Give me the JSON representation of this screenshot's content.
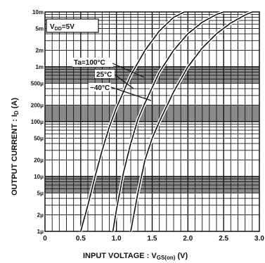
{
  "chart_data": {
    "type": "line",
    "title": "",
    "xlabel": "INPUT VOLTAGE : V",
    "xlabel_sub": "GS(on)",
    "xlabel_unit": "(V)",
    "ylabel": "OUTPUT CURRENT : I",
    "ylabel_sub": "D",
    "ylabel_unit": "(A)",
    "xlim": [
      0,
      3.0
    ],
    "ylim": [
      0.001,
      10
    ],
    "yscale": "log",
    "x_ticks": [
      0,
      0.5,
      1.0,
      1.5,
      2.0,
      2.5,
      3.0
    ],
    "x_tick_labels": [
      "0",
      "0.5",
      "1.0",
      "1.5",
      "2.0",
      "2.5",
      "3.0"
    ],
    "y_tick_labels": [
      {
        "value": 10,
        "label": "10m"
      },
      {
        "value": 5,
        "label": "5m"
      },
      {
        "value": 2,
        "label": "2m"
      },
      {
        "value": 1,
        "label": "1m"
      },
      {
        "value": 0.5,
        "label": "500μ"
      },
      {
        "value": 0.2,
        "label": "200μ"
      },
      {
        "value": 0.1,
        "label": "100μ"
      },
      {
        "value": 0.05,
        "label": "50μ"
      },
      {
        "value": 0.02,
        "label": "20μ"
      },
      {
        "value": 0.01,
        "label": "10μ"
      },
      {
        "value": 0.005,
        "label": "5μ"
      },
      {
        "value": 0.002,
        "label": "2μ"
      },
      {
        "value": 0.001,
        "label": "1μ"
      }
    ],
    "grid": true,
    "shaded_bands": [
      {
        "from": 0.5,
        "to": 1
      },
      {
        "from": 0.1,
        "to": 0.2
      },
      {
        "from": 0.005,
        "to": 0.01
      }
    ],
    "annotations": {
      "condition": "VDD=5V",
      "condition_sub_prefix": "V",
      "condition_sub": "DD",
      "condition_rest": "=5V",
      "series_header": "Ta=100°C"
    },
    "series": [
      {
        "name": "Ta=100°C",
        "label": "Ta=100°C",
        "x": [
          0.5,
          0.6,
          0.7,
          0.8,
          0.9,
          1.0,
          1.2,
          1.4,
          1.6,
          1.8,
          1.95
        ],
        "y": [
          0.001,
          0.003,
          0.01,
          0.03,
          0.08,
          0.18,
          0.7,
          2.0,
          4.5,
          8.0,
          10
        ]
      },
      {
        "name": "25°C",
        "label": "25°C",
        "x": [
          0.95,
          1.0,
          1.1,
          1.2,
          1.3,
          1.4,
          1.6,
          1.8,
          2.0,
          2.2,
          2.4,
          2.5
        ],
        "y": [
          0.001,
          0.0025,
          0.012,
          0.04,
          0.11,
          0.22,
          0.8,
          2.0,
          4.0,
          6.5,
          9.0,
          10
        ]
      },
      {
        "name": "-40°C",
        "label": "−40°C",
        "x": [
          1.2,
          1.3,
          1.4,
          1.5,
          1.6,
          1.8,
          2.0,
          2.2,
          2.4,
          2.6,
          2.8,
          2.9
        ],
        "y": [
          0.001,
          0.005,
          0.02,
          0.05,
          0.1,
          0.35,
          1.0,
          2.2,
          4.0,
          6.3,
          8.8,
          10
        ]
      }
    ]
  }
}
